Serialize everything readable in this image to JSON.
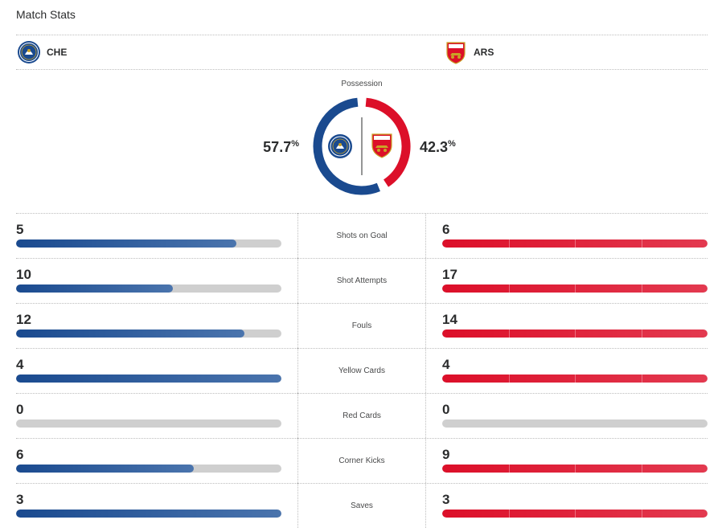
{
  "title": "Match Stats",
  "home": {
    "abbr": "CHE",
    "crest_icon": "chelsea-crest-icon",
    "color": "#1a4a8f"
  },
  "away": {
    "abbr": "ARS",
    "crest_icon": "arsenal-crest-icon",
    "color": "#dc0f29"
  },
  "possession": {
    "label": "Possession",
    "home_value": "57.7",
    "away_value": "42.3",
    "unit": "%",
    "home_fraction": 0.577,
    "away_fraction": 0.423
  },
  "stats": [
    {
      "label": "Shots on Goal",
      "home": "5",
      "away": "6",
      "home_fill": 0.83,
      "away_fill": 1.0
    },
    {
      "label": "Shot Attempts",
      "home": "10",
      "away": "17",
      "home_fill": 0.59,
      "away_fill": 1.0
    },
    {
      "label": "Fouls",
      "home": "12",
      "away": "14",
      "home_fill": 0.86,
      "away_fill": 1.0
    },
    {
      "label": "Yellow Cards",
      "home": "4",
      "away": "4",
      "home_fill": 1.0,
      "away_fill": 1.0
    },
    {
      "label": "Red Cards",
      "home": "0",
      "away": "0",
      "home_fill": 0.0,
      "away_fill": 0.0
    },
    {
      "label": "Corner Kicks",
      "home": "6",
      "away": "9",
      "home_fill": 0.67,
      "away_fill": 1.0
    },
    {
      "label": "Saves",
      "home": "3",
      "away": "3",
      "home_fill": 1.0,
      "away_fill": 1.0
    }
  ]
}
